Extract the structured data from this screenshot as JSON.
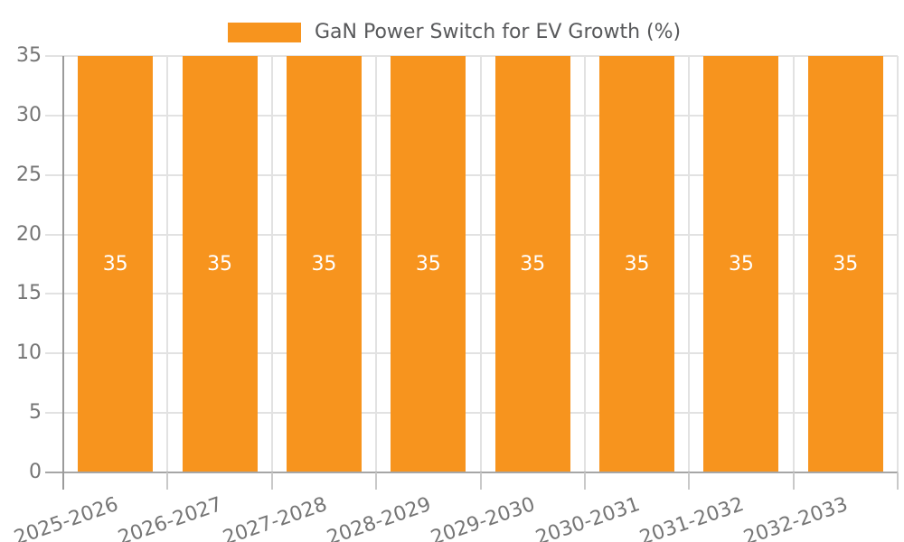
{
  "chart_data": {
    "type": "bar",
    "title": "GaN Power Switch for EV Growth (%)",
    "categories": [
      "2025-2026",
      "2026-2027",
      "2027-2028",
      "2028-2029",
      "2029-2030",
      "2030-2031",
      "2031-2032",
      "2032-2033"
    ],
    "series": [
      {
        "name": "GaN Power Switch for EV Growth (%)",
        "values": [
          35,
          35,
          35,
          35,
          35,
          35,
          35,
          35
        ]
      }
    ],
    "xlabel": "",
    "ylabel": "",
    "ylim": [
      0,
      35
    ],
    "yticks": [
      0,
      5,
      10,
      15,
      20,
      25,
      30,
      35
    ],
    "grid": true,
    "legend_position": "top-center",
    "xtick_rotation_deg": -19,
    "bar_value_labels_shown": true,
    "colors": {
      "bar": "#F7941E",
      "value_label": "#FFFFFF",
      "legend_text": "#58595B",
      "tick_label": "#757575",
      "gridline": "#E2E2E2",
      "y_axis_line": "#9B9B9B",
      "x_axis_line": "#A6A6A6",
      "x_tick": "#C9C9C9",
      "background": "#FFFFFF"
    }
  }
}
